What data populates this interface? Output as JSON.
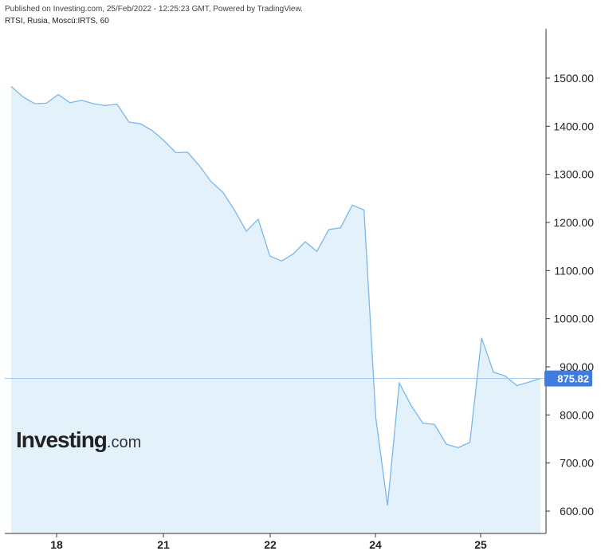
{
  "header": {
    "published": "Published on Investing.com, 25/Feb/2022 - 12:25:23 GMT, Powered by TradingView.",
    "symbol": "RTSI, Rusia, Moscú:IRTS, 60"
  },
  "logo": {
    "brand": "Investing",
    "suffix": ".com"
  },
  "colors": {
    "line": "#7ab8e8",
    "fill": "#e3f1fb",
    "last_price_bg": "#3f7be0",
    "axis": "#333333",
    "price_line": "#9ec7ee"
  },
  "chart_data": {
    "type": "area",
    "ylim": [
      580,
      1600
    ],
    "y_ticks": [
      600,
      700,
      800,
      900,
      1000,
      1100,
      1200,
      1300,
      1400,
      1500
    ],
    "y_tick_labels": [
      "600.00",
      "700.00",
      "800.00",
      "900.00",
      "1000.00",
      "1100.00",
      "1200.00",
      "1300.00",
      "1400.00",
      "1500.00"
    ],
    "x_ticks": [
      {
        "label": "18",
        "index": 4
      },
      {
        "label": "21",
        "index": 14
      },
      {
        "label": "22",
        "index": 24
      },
      {
        "label": "24",
        "index": 34
      },
      {
        "label": "25",
        "index": 44
      }
    ],
    "last_price": 875.82,
    "last_price_label": "875.82",
    "series": [
      {
        "values": [
          1483,
          1461,
          1447,
          1448,
          1466,
          1449,
          1454,
          1447,
          1443,
          1446,
          1409,
          1405,
          1391,
          1370,
          1345,
          1346,
          1318,
          1285,
          1263,
          1225,
          1182,
          1207,
          1130,
          1120,
          1135,
          1160,
          1140,
          1185,
          1189,
          1236,
          1226,
          795,
          612,
          866,
          820,
          783,
          780,
          739,
          732,
          743,
          960,
          889,
          881,
          861,
          868,
          875.82
        ]
      }
    ]
  }
}
